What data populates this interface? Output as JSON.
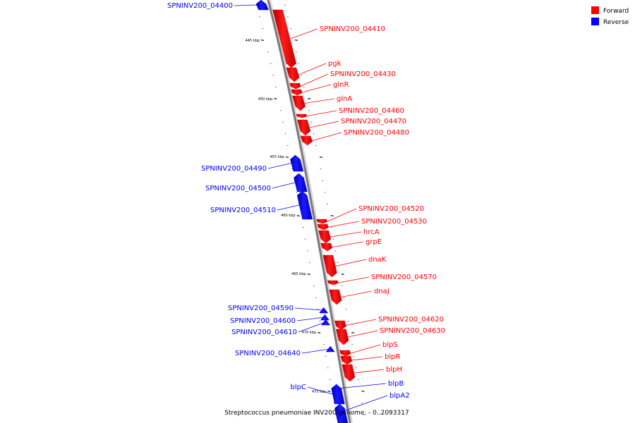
{
  "caption": "Streptococcus pneumoniae INV200 genome. - 0..2093317",
  "legend": [
    {
      "label": "Forward",
      "color": "#ff0000"
    },
    {
      "label": "Reverse",
      "color": "#0000ff"
    }
  ],
  "colors": {
    "forward": "#ff0000",
    "reverse": "#0000ff",
    "backbone": "#808080"
  },
  "scale_labels": [
    "445 kbp",
    "450 kbp",
    "455 kbp",
    "460 kbp",
    "465 kbp",
    "470 kbp",
    "475 kbp"
  ],
  "genes": [
    {
      "name": "SPNINV200_04400",
      "strand": "reverse"
    },
    {
      "name": "SPNINV200_04410",
      "strand": "forward"
    },
    {
      "name": "pgk",
      "strand": "forward"
    },
    {
      "name": "SPNINV200_04430",
      "strand": "forward"
    },
    {
      "name": "glnR",
      "strand": "forward"
    },
    {
      "name": "glnA",
      "strand": "forward"
    },
    {
      "name": "SPNINV200_04460",
      "strand": "forward"
    },
    {
      "name": "SPNINV200_04470",
      "strand": "forward"
    },
    {
      "name": "SPNINV200_04480",
      "strand": "forward"
    },
    {
      "name": "SPNINV200_04490",
      "strand": "reverse"
    },
    {
      "name": "SPNINV200_04500",
      "strand": "reverse"
    },
    {
      "name": "SPNINV200_04510",
      "strand": "reverse"
    },
    {
      "name": "SPNINV200_04520",
      "strand": "forward"
    },
    {
      "name": "SPNINV200_04530",
      "strand": "forward"
    },
    {
      "name": "hrcA",
      "strand": "forward"
    },
    {
      "name": "grpE",
      "strand": "forward"
    },
    {
      "name": "dnaK",
      "strand": "forward"
    },
    {
      "name": "SPNINV200_04570",
      "strand": "forward"
    },
    {
      "name": "dnaJ",
      "strand": "forward"
    },
    {
      "name": "SPNINV200_04590",
      "strand": "reverse"
    },
    {
      "name": "SPNINV200_04600",
      "strand": "reverse"
    },
    {
      "name": "SPNINV200_04610",
      "strand": "reverse"
    },
    {
      "name": "SPNINV200_04620",
      "strand": "forward"
    },
    {
      "name": "SPNINV200_04630",
      "strand": "forward"
    },
    {
      "name": "SPNINV200_04640",
      "strand": "reverse"
    },
    {
      "name": "blpS",
      "strand": "forward"
    },
    {
      "name": "blpR",
      "strand": "forward"
    },
    {
      "name": "blpH",
      "strand": "forward"
    },
    {
      "name": "blpC",
      "strand": "reverse"
    },
    {
      "name": "blpB",
      "strand": "reverse"
    },
    {
      "name": "blpA2",
      "strand": "reverse"
    }
  ]
}
